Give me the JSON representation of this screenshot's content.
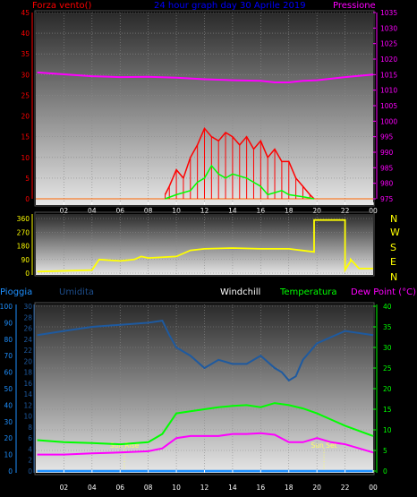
{
  "header": {
    "left": "Forza vento()",
    "center": "24 hour graph day  30 Aprile 2019",
    "right": "Pressione"
  },
  "compass": [
    "N",
    "W",
    "S",
    "E",
    "N"
  ],
  "bottom_header": {
    "pioggia": "Pioggia",
    "umidita": "Umidita",
    "windchill": "Windchill",
    "temperatura": "Temperatura",
    "dewpoint": "Dew Point (°C)"
  },
  "sun_labels": {
    "rise": "Sun Rise",
    "set": "Sun Set"
  },
  "hour_ticks": [
    "02",
    "04",
    "06",
    "08",
    "10",
    "12",
    "14",
    "16",
    "18",
    "20",
    "22",
    "00"
  ],
  "colors": {
    "wind_max": "#ff0000",
    "wind_avg": "#00ff00",
    "pressure": "#ff00ff",
    "direction": "#ffff00",
    "humidity": "#1e5aa0",
    "temperature": "#00ff00",
    "dewpoint": "#ff00ff",
    "rain": "#1e90ff"
  },
  "chart_data": [
    {
      "type": "line",
      "panel": "wind-pressure",
      "ylim_left": [
        0,
        45
      ],
      "ylim_right": [
        975,
        1035
      ],
      "yticks_left": [
        "0",
        "5",
        "10",
        "15",
        "20",
        "25",
        "30",
        "35",
        "40",
        "45"
      ],
      "yticks_right": [
        "975",
        "980",
        "985",
        "990",
        "995",
        "1000",
        "1005",
        "1010",
        "1015",
        "1020",
        "1025",
        "1030",
        "1035"
      ],
      "series": [
        {
          "key": "pressure",
          "axis": "right",
          "x": [
            0.1,
            2,
            4,
            6,
            8,
            10,
            12,
            14,
            16,
            17,
            18,
            19,
            20,
            22,
            24
          ],
          "values": [
            1015.7,
            1015.1,
            1014.5,
            1014.2,
            1014.3,
            1014.0,
            1013.5,
            1013.2,
            1013.0,
            1012.5,
            1012.5,
            1013.0,
            1013.2,
            1014.2,
            1015.0
          ]
        },
        {
          "key": "wind_max",
          "axis": "left",
          "x": [
            9.2,
            9.5,
            10,
            10.5,
            11,
            11.5,
            12,
            12.5,
            13,
            13.5,
            14,
            14.5,
            15,
            15.5,
            16,
            16.5,
            17,
            17.5,
            18,
            18.5,
            19,
            19.5,
            19.8
          ],
          "values": [
            1,
            3,
            7,
            5,
            10,
            13,
            17,
            15,
            14,
            16,
            15,
            13,
            15,
            12,
            14,
            10,
            12,
            9,
            9,
            5,
            3,
            1,
            0
          ]
        },
        {
          "key": "wind_avg",
          "axis": "left",
          "x": [
            9.2,
            10,
            11,
            11.5,
            12,
            12.5,
            13,
            13.5,
            14,
            15,
            16,
            16.5,
            17,
            17.5,
            18,
            19,
            19.8
          ],
          "values": [
            0,
            1,
            2,
            4,
            5,
            8,
            6,
            5,
            6,
            5,
            3,
            1,
            1.5,
            2,
            1,
            0.5,
            0
          ]
        }
      ]
    },
    {
      "type": "line",
      "panel": "wind-direction",
      "ylim": [
        0,
        360
      ],
      "yticks": [
        "0",
        "90",
        "180",
        "270",
        "360"
      ],
      "series": [
        {
          "key": "direction",
          "x": [
            0.1,
            4,
            4.5,
            6,
            7,
            7.5,
            8,
            10,
            11,
            12,
            14,
            16,
            18,
            19.8,
            19.8,
            20,
            22,
            22,
            22.4,
            22.4,
            23,
            24
          ],
          "values": [
            10,
            20,
            90,
            80,
            90,
            110,
            100,
            110,
            150,
            160,
            165,
            160,
            160,
            140,
            350,
            350,
            350,
            20,
            80,
            90,
            30,
            30
          ]
        }
      ]
    },
    {
      "type": "line",
      "panel": "temp-humidity",
      "ylim_left_rain": [
        0,
        100
      ],
      "ylim_humidity": [
        0,
        30
      ],
      "ylim_right": [
        0,
        40
      ],
      "yticks_rain": [
        "0",
        "10",
        "20",
        "30",
        "40",
        "50",
        "60",
        "70",
        "80",
        "90",
        "100"
      ],
      "yticks_humidity": [
        "0",
        "2",
        "4",
        "6",
        "8",
        "10",
        "12",
        "14",
        "16",
        "18",
        "20",
        "22",
        "24",
        "26",
        "28",
        "30"
      ],
      "yticks_right": [
        "0",
        "5",
        "10",
        "15",
        "20",
        "25",
        "30",
        "35",
        "40"
      ],
      "series": [
        {
          "key": "humidity",
          "axis": "right",
          "x": [
            0.1,
            2,
            4,
            6,
            8,
            9,
            9.5,
            10,
            11,
            12,
            13,
            14,
            15,
            16,
            17,
            17.5,
            18,
            18.5,
            19,
            20,
            22,
            24
          ],
          "values": [
            33,
            34,
            35,
            35.5,
            36,
            36.5,
            33,
            30,
            28,
            25,
            27,
            26,
            26,
            28,
            25,
            24,
            22,
            23,
            27,
            31,
            34,
            33
          ]
        },
        {
          "key": "temperature",
          "axis": "right",
          "x": [
            0.1,
            2,
            4,
            6,
            8,
            9,
            10,
            11,
            12,
            13,
            14,
            15,
            16,
            17,
            18,
            19,
            20,
            21,
            22,
            24
          ],
          "values": [
            7.5,
            7,
            6.8,
            6.5,
            7,
            9,
            14,
            14.5,
            15,
            15.5,
            15.8,
            16,
            15.5,
            16.5,
            16,
            15.2,
            14,
            12.5,
            11,
            8.5
          ]
        },
        {
          "key": "dewpoint",
          "axis": "right",
          "x": [
            0.1,
            2,
            4,
            6,
            8,
            9,
            10,
            11,
            12,
            13,
            14,
            15,
            16,
            17,
            18,
            19,
            20,
            21,
            22,
            24
          ],
          "values": [
            4,
            4,
            4.3,
            4.5,
            4.8,
            5.5,
            8,
            8.5,
            8.5,
            8.5,
            9,
            9,
            9.2,
            8.8,
            7,
            7,
            8,
            7,
            6.5,
            4.5
          ]
        },
        {
          "key": "rain",
          "axis": "left",
          "x": [
            0.1,
            24
          ],
          "values": [
            0,
            0
          ]
        }
      ],
      "sun_rise_hour": 6.3,
      "sun_set_hour": 20.5
    }
  ]
}
